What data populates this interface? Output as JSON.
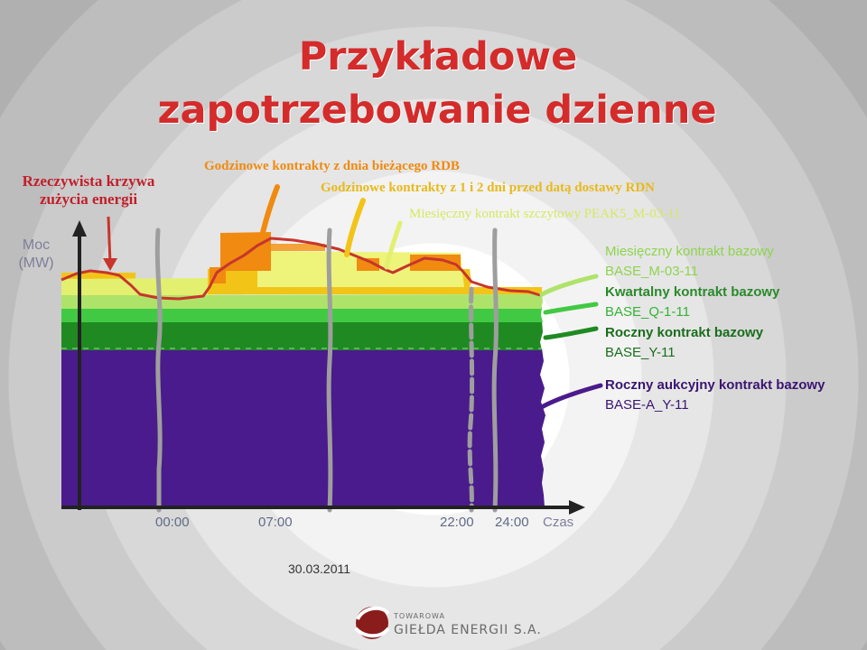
{
  "title": {
    "line1": "Przykładowe",
    "line2": "zapotrzebowanie dzienne"
  },
  "left_labels": {
    "actual_curve_line1": "Rzeczywista krzywa",
    "actual_curve_line2": "zużycia energii",
    "y_axis_line1": "Moc",
    "y_axis_line2": "(MW)"
  },
  "top_labels": {
    "hourly_current_day": "Godzinowe kontrakty z dnia bieżącego RDB",
    "hourly_1_2_days": "Godzinowe kontrakty z 1 i 2 dni przed datą dostawy RDN",
    "monthly_peak": "Miesięczny kontrakt szczytowy PEAK5_M-03-11"
  },
  "right_labels": {
    "monthly_base_name": "Miesięczny kontrakt bazowy",
    "monthly_base_code": "BASE_M-03-11",
    "quarterly_base_name": "Kwartalny kontrakt bazowy",
    "quarterly_base_code": "BASE_Q-1-11",
    "yearly_base_name": "Roczny kontrakt bazowy",
    "yearly_base_code": "BASE_Y-11",
    "yearly_auction_name": "Roczny aukcyjny kontrakt bazowy",
    "yearly_auction_code": "BASE-A_Y-11"
  },
  "time_axis": {
    "t0": "00:00",
    "t1": "07:00",
    "t2": "22:00",
    "t3": "24:00",
    "label": "Czas"
  },
  "date": "30.03.2011",
  "logo": {
    "line1": "TOWAROWA",
    "line2": "GIEŁDA ENERGII S.A."
  },
  "colors": {
    "title": "#d42b2b",
    "actual_curve": "#c7352c",
    "hourly_current_day": "#f08a10",
    "hourly_1_2_days": "#f2c418",
    "monthly_peak": "#e3ef6e",
    "monthly_base": "#aee36a",
    "quarterly_base": "#42c943",
    "yearly_base": "#1f8a22",
    "yearly_auction": "#4a1b8c"
  }
}
